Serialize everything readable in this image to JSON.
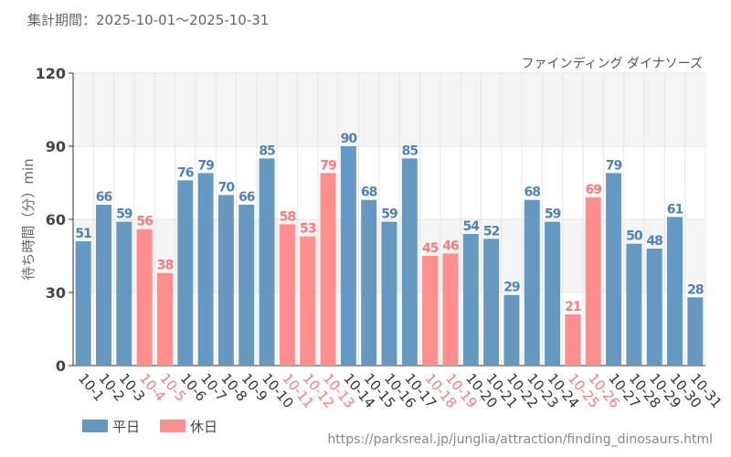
{
  "period_label": "集計期間：2025-10-01～2025-10-31",
  "url_text": "https://parksreal.jp/junglia/attraction/finding_dinosaurs.html",
  "chart_data": {
    "type": "bar",
    "title": "ファインディング ダイナソーズ",
    "ylabel": "待ち時間（分）min",
    "xlabel": "",
    "ylim": [
      0,
      120
    ],
    "yticks": [
      0,
      30,
      60,
      90,
      120
    ],
    "grid": true,
    "legend_placement": "bottom-left",
    "categories": [
      "10-1",
      "10-2",
      "10-3",
      "10-4",
      "10-5",
      "10-6",
      "10-7",
      "10-8",
      "10-9",
      "10-10",
      "10-11",
      "10-12",
      "10-13",
      "10-14",
      "10-15",
      "10-16",
      "10-17",
      "10-18",
      "10-19",
      "10-20",
      "10-21",
      "10-22",
      "10-23",
      "10-24",
      "10-25",
      "10-26",
      "10-27",
      "10-28",
      "10-29",
      "10-30",
      "10-31"
    ],
    "values": [
      51,
      66,
      59,
      56,
      38,
      76,
      79,
      70,
      66,
      85,
      58,
      53,
      79,
      90,
      68,
      59,
      85,
      45,
      46,
      54,
      52,
      29,
      68,
      59,
      21,
      69,
      79,
      50,
      48,
      61,
      28
    ],
    "day_type": [
      "weekday",
      "weekday",
      "weekday",
      "holiday",
      "holiday",
      "weekday",
      "weekday",
      "weekday",
      "weekday",
      "weekday",
      "holiday",
      "holiday",
      "holiday",
      "weekday",
      "weekday",
      "weekday",
      "weekday",
      "holiday",
      "holiday",
      "weekday",
      "weekday",
      "weekday",
      "weekday",
      "weekday",
      "holiday",
      "holiday",
      "weekday",
      "weekday",
      "weekday",
      "weekday",
      "weekday"
    ],
    "series": [
      {
        "key": "weekday",
        "name": "平日",
        "color": "#6699c2",
        "label_color": "#4f82b4"
      },
      {
        "key": "holiday",
        "name": "休日",
        "color": "#ff8f8f",
        "label_color": "#ff7b7b"
      }
    ]
  }
}
